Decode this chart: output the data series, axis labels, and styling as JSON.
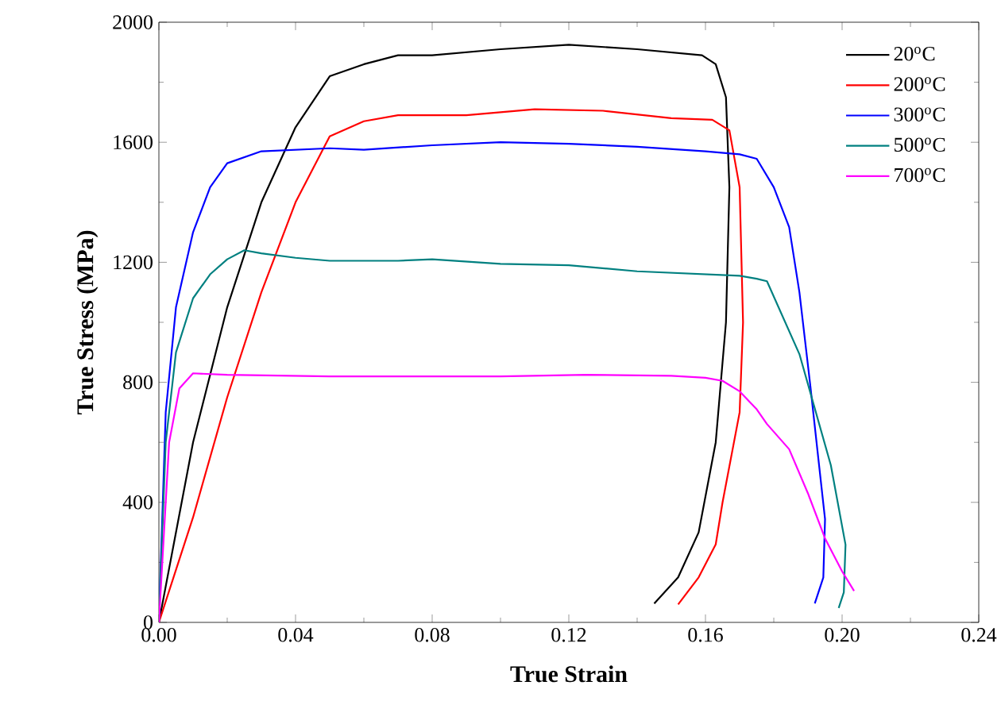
{
  "chart_data": {
    "type": "line",
    "xlabel": "True Strain",
    "ylabel": "True Stress (MPa)",
    "xlim": [
      0,
      0.24
    ],
    "ylim": [
      0,
      2000
    ],
    "xticks": [
      {
        "value": 0,
        "label": "0.00"
      },
      {
        "value": 0.04,
        "label": "0.04"
      },
      {
        "value": 0.08,
        "label": "0.08"
      },
      {
        "value": 0.12,
        "label": "0.12"
      },
      {
        "value": 0.16,
        "label": "0.16"
      },
      {
        "value": 0.2,
        "label": "0.20"
      },
      {
        "value": 0.24,
        "label": "0.24"
      }
    ],
    "yticks": [
      0,
      400,
      800,
      1200,
      1600,
      2000
    ],
    "legend": "top right",
    "grid": false,
    "marker": "none",
    "line_style": "solid",
    "series": [
      {
        "name": "20$^{o}$C",
        "color": "#000000",
        "x": [
          0,
          0.005,
          0.01,
          0.02,
          0.03,
          0.04,
          0.05,
          0.06,
          0.07,
          0.08,
          0.1,
          0.12,
          0.14,
          0.159,
          0.163,
          0.166,
          0.167,
          0.166,
          0.163,
          0.158,
          0.152,
          0.145
        ],
        "values": [
          0,
          300,
          600,
          1050,
          1400,
          1650,
          1820,
          1860,
          1890,
          1890,
          1910,
          1925,
          1910,
          1890,
          1860,
          1750,
          1450,
          1000,
          600,
          300,
          150,
          63
        ]
      },
      {
        "name": "200$^{o}$C",
        "color": "#ff0000",
        "x": [
          0,
          0.01,
          0.02,
          0.03,
          0.04,
          0.05,
          0.06,
          0.07,
          0.09,
          0.11,
          0.13,
          0.15,
          0.162,
          0.167,
          0.17,
          0.171,
          0.17,
          0.165,
          0.163,
          0.158,
          0.152
        ],
        "values": [
          0,
          350,
          750,
          1100,
          1400,
          1620,
          1670,
          1690,
          1690,
          1710,
          1705,
          1680,
          1675,
          1640,
          1450,
          1000,
          700,
          400,
          260,
          150,
          60
        ]
      },
      {
        "name": "300$^{o}$C",
        "color": "#0000ff",
        "x": [
          0,
          0.002,
          0.005,
          0.01,
          0.015,
          0.02,
          0.03,
          0.05,
          0.06,
          0.08,
          0.1,
          0.12,
          0.14,
          0.16,
          0.17,
          0.175,
          0.18,
          0.1845,
          0.1875,
          0.1907,
          0.193,
          0.195,
          0.1945,
          0.192
        ],
        "values": [
          0,
          700,
          1050,
          1300,
          1450,
          1530,
          1570,
          1580,
          1575,
          1590,
          1600,
          1595,
          1585,
          1570,
          1560,
          1545,
          1450,
          1317,
          1100,
          788,
          550,
          344,
          150,
          63
        ]
      },
      {
        "name": "500$^{o}$C",
        "color": "#008080",
        "x": [
          0,
          0.002,
          0.005,
          0.01,
          0.015,
          0.02,
          0.025,
          0.03,
          0.04,
          0.05,
          0.07,
          0.08,
          0.1,
          0.12,
          0.14,
          0.16,
          0.17,
          0.175,
          0.178,
          0.1875,
          0.1967,
          0.201,
          0.2005,
          0.199
        ],
        "values": [
          0,
          600,
          900,
          1080,
          1160,
          1210,
          1240,
          1230,
          1215,
          1205,
          1205,
          1210,
          1195,
          1190,
          1170,
          1160,
          1155,
          1145,
          1137,
          894,
          524,
          259,
          100,
          48
        ]
      },
      {
        "name": "700$^{o}$C",
        "color": "#ff00ff",
        "x": [
          0,
          0.003,
          0.006,
          0.01,
          0.02,
          0.05,
          0.1,
          0.125,
          0.15,
          0.16,
          0.165,
          0.17,
          0.175,
          0.178,
          0.1845,
          0.19,
          0.195,
          0.2,
          0.2035
        ],
        "values": [
          0,
          600,
          780,
          830,
          825,
          820,
          820,
          825,
          822,
          815,
          805,
          770,
          710,
          661,
          577,
          430,
          280,
          170,
          105
        ]
      }
    ]
  }
}
